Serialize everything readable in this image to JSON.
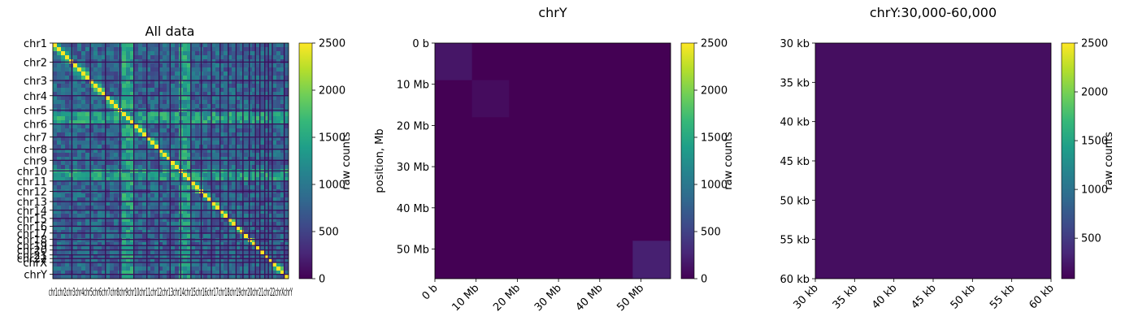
{
  "colormap": {
    "name": "viridis",
    "stops": [
      "#440154",
      "#482878",
      "#3e4989",
      "#31688e",
      "#26828e",
      "#1f9e89",
      "#35b779",
      "#6ece58",
      "#b5de2b",
      "#fde725"
    ]
  },
  "chart_data": [
    {
      "type": "heatmap",
      "title": "All data",
      "ylabel": "",
      "colorbar": {
        "label": "raw counts",
        "range": [
          0,
          2500
        ],
        "ticks": [
          "2500",
          "2000",
          "1500",
          "1000",
          "500",
          "0"
        ]
      },
      "row_labels": [
        "chr1",
        "chr2",
        "chr3",
        "chr4",
        "chr5",
        "chr6",
        "chr7",
        "chr8",
        "chr9",
        "chr10",
        "chr11",
        "chr12",
        "chr13",
        "chr14",
        "chr15",
        "chr16",
        "chr17",
        "chr18",
        "chr19",
        "chr20",
        "chr21",
        "chr22",
        "chrX",
        "chrY"
      ],
      "col_labels": [
        "chr1",
        "chr2",
        "chr3",
        "chr4",
        "chr5",
        "chr6",
        "chr7",
        "chr8",
        "chr9",
        "chr10",
        "chr11",
        "chr12",
        "chr13",
        "chr14",
        "chr15",
        "chr16",
        "chr17",
        "chr18",
        "chr19",
        "chr20",
        "chr21",
        "chr22",
        "chrX",
        "chrY"
      ],
      "chrom_sizes_mb": [
        249,
        242,
        198,
        190,
        181,
        171,
        159,
        145,
        138,
        134,
        135,
        133,
        114,
        107,
        102,
        90,
        83,
        80,
        59,
        64,
        47,
        51,
        156,
        57
      ],
      "x_axis_label_text": "chr1chr2chr3chr4chr5chr6chr7chr8chr9chr10chr11chr12chr13chr14chr15chr16chr17chr18chr19chr20chr21chr22chrXchrY"
    },
    {
      "type": "heatmap",
      "title": "chrY",
      "ylabel": "position, Mb",
      "colorbar": {
        "label": "raw counts",
        "range": [
          0,
          2500
        ],
        "ticks": [
          "2500",
          "2000",
          "1500",
          "1000",
          "500",
          "0"
        ]
      },
      "y_ticks": [
        "0 b",
        "10 Mb",
        "20 Mb",
        "30 Mb",
        "40 Mb",
        "50 Mb"
      ],
      "x_ticks": [
        "0 b",
        "10 Mb",
        "20 Mb",
        "30 Mb",
        "40 Mb",
        "50 Mb"
      ],
      "range_mb": [
        0,
        57.2
      ],
      "blocks": [
        {
          "from_mb": 0,
          "to_mb": 9,
          "value": 150
        },
        {
          "from_mb": 9,
          "to_mb": 18,
          "value": 80
        },
        {
          "from_mb": 48,
          "to_mb": 57.2,
          "value": 220
        }
      ]
    },
    {
      "type": "heatmap",
      "title": "chrY:30,000-60,000",
      "ylabel": "",
      "colorbar": {
        "label": "raw counts",
        "range": [
          0,
          2500
        ],
        "ticks": [
          "2500",
          "2000",
          "1500",
          "1000",
          "500"
        ]
      },
      "y_ticks": [
        "30 kb",
        "35 kb",
        "40 kb",
        "45 kb",
        "50 kb",
        "55 kb",
        "60 kb"
      ],
      "x_ticks": [
        "30 kb",
        "35 kb",
        "40 kb",
        "45 kb",
        "50 kb",
        "55 kb",
        "60 kb"
      ],
      "range_kb": [
        30,
        60
      ],
      "value": 90
    }
  ]
}
